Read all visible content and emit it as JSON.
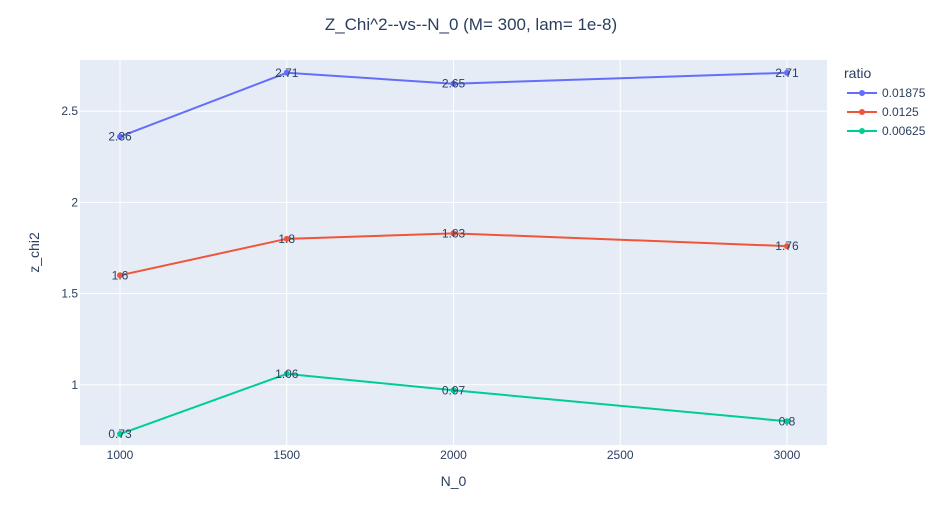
{
  "chart_data": {
    "type": "line",
    "title": "Z_Chi^2--vs--N_0  (M= 300, lam= 1e-8)",
    "xlabel": "N_0",
    "ylabel": "z_chi2",
    "xlim": [
      880,
      3120
    ],
    "ylim": [
      0.67,
      2.78
    ],
    "x_ticks": [
      1000,
      1500,
      2000,
      2500,
      3000
    ],
    "y_ticks": [
      1,
      1.5,
      2,
      2.5
    ],
    "grid": true,
    "legend_title": "ratio",
    "legend_position": "right",
    "x": [
      1000,
      1500,
      2000,
      3000
    ],
    "series": [
      {
        "name": "0.01875",
        "color": "#636efa",
        "values": [
          2.36,
          2.71,
          2.65,
          2.71
        ],
        "labels": [
          "2.36",
          "2.71",
          "2.65",
          "2.71"
        ]
      },
      {
        "name": "0.0125",
        "color": "#ef553b",
        "values": [
          1.6,
          1.8,
          1.83,
          1.76
        ],
        "labels": [
          "1.6",
          "1.8",
          "1.83",
          "1.76"
        ]
      },
      {
        "name": "0.00625",
        "color": "#00cc96",
        "values": [
          0.73,
          1.06,
          0.97,
          0.8
        ],
        "labels": [
          "0.73",
          "1.06",
          "0.97",
          "0.8"
        ]
      }
    ],
    "colors": {
      "plot_background": "#e5ecf6",
      "grid": "#ffffff",
      "text": "#2a3f5f"
    }
  }
}
